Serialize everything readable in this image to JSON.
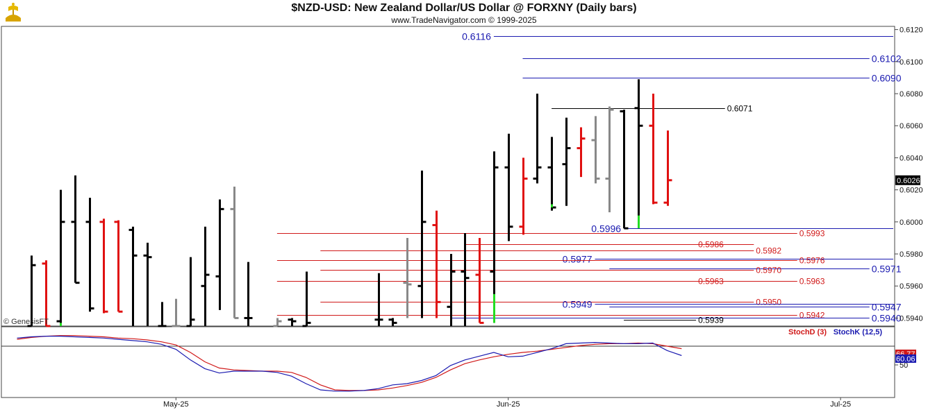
{
  "header": {
    "title": "$NZD-USD:  New Zealand Dollar/US Dollar @ FORXNY  (Daily bars)",
    "subtitle": "www.TradeNavigator.com © 1999-2025"
  },
  "logo": {
    "icon": "trade-navigator-logo-icon",
    "color": "#d8a400"
  },
  "watermark": "© GenesisFT",
  "colors": {
    "up": "#000000",
    "down": "#e01010",
    "neutral": "#888888",
    "extreme": "#22dd22",
    "blue_line": "#1a1ab0",
    "red_line": "#d01818",
    "stochD": "#d01818",
    "stochK": "#1a1ab0"
  },
  "chart_data": [
    {
      "type": "ohlc",
      "name": "price",
      "yaxis": {
        "range": [
          0.5935,
          0.6122
        ],
        "ticks": [
          "0.6120",
          "0.6100",
          "0.6080",
          "0.6060",
          "0.6040",
          "0.6020",
          "0.6000",
          "0.5980",
          "0.5960",
          "0.5940"
        ]
      },
      "last_price": "0.6026",
      "xaxis": {
        "labels": [
          {
            "text": "May-25",
            "index": 11
          },
          {
            "text": "Jun-25",
            "index": 34
          },
          {
            "text": "Jul-25",
            "index": 57
          }
        ],
        "count": 66
      },
      "bars": [
        {
          "i": 1,
          "o": 0.5935,
          "h": 0.5979,
          "l": 0.5935,
          "c": 0.5973,
          "col": "up"
        },
        {
          "i": 2,
          "o": 0.5974,
          "h": 0.5976,
          "l": 0.5935,
          "c": 0.5935,
          "col": "down"
        },
        {
          "i": 3,
          "o": 0.5938,
          "h": 0.602,
          "l": 0.5935,
          "c": 0.6,
          "col": "up"
        },
        {
          "i": 4,
          "o": 0.6,
          "h": 0.6029,
          "l": 0.5962,
          "c": 0.5962,
          "col": "up"
        },
        {
          "i": 5,
          "o": 0.6,
          "h": 0.6015,
          "l": 0.5944,
          "c": 0.5946,
          "col": "up"
        },
        {
          "i": 6,
          "o": 0.6,
          "h": 0.6002,
          "l": 0.5943,
          "c": 0.5944,
          "col": "down"
        },
        {
          "i": 7,
          "o": 0.6,
          "h": 0.6001,
          "l": 0.5944,
          "c": 0.5944,
          "col": "down"
        },
        {
          "i": 8,
          "o": 0.5995,
          "h": 0.5997,
          "l": 0.5935,
          "c": 0.5979,
          "col": "up"
        },
        {
          "i": 9,
          "o": 0.5979,
          "h": 0.5987,
          "l": 0.5935,
          "c": 0.5978,
          "col": "up"
        },
        {
          "i": 10,
          "o": 0.5935,
          "h": 0.595,
          "l": 0.5935,
          "c": 0.5935,
          "col": "up"
        },
        {
          "i": 11,
          "o": 0.5935,
          "h": 0.5952,
          "l": 0.5935,
          "c": 0.5935,
          "col": "neutral"
        },
        {
          "i": 12,
          "o": 0.5935,
          "h": 0.5978,
          "l": 0.5935,
          "c": 0.5939,
          "col": "up"
        },
        {
          "i": 13,
          "o": 0.596,
          "h": 0.5997,
          "l": 0.5935,
          "c": 0.5967,
          "col": "up"
        },
        {
          "i": 14,
          "o": 0.5966,
          "h": 0.6014,
          "l": 0.5945,
          "c": 0.6008,
          "col": "up"
        },
        {
          "i": 15,
          "o": 0.6008,
          "h": 0.6022,
          "l": 0.594,
          "c": 0.594,
          "col": "neutral"
        },
        {
          "i": 16,
          "o": 0.594,
          "h": 0.5975,
          "l": 0.5935,
          "c": 0.594,
          "col": "up"
        },
        {
          "i": 18,
          "o": 0.5935,
          "h": 0.594,
          "l": 0.5935,
          "c": 0.5938,
          "col": "neutral"
        },
        {
          "i": 19,
          "o": 0.5939,
          "h": 0.594,
          "l": 0.5935,
          "c": 0.5938,
          "col": "up"
        },
        {
          "i": 20,
          "o": 0.5935,
          "h": 0.5969,
          "l": 0.5935,
          "c": 0.5937,
          "col": "up"
        },
        {
          "i": 25,
          "o": 0.5939,
          "h": 0.5968,
          "l": 0.5935,
          "c": 0.5939,
          "col": "up"
        },
        {
          "i": 26,
          "o": 0.5939,
          "h": 0.594,
          "l": 0.5935,
          "c": 0.5937,
          "col": "up"
        },
        {
          "i": 27,
          "o": 0.5962,
          "h": 0.599,
          "l": 0.594,
          "c": 0.5961,
          "col": "neutral"
        },
        {
          "i": 28,
          "o": 0.596,
          "h": 0.6032,
          "l": 0.594,
          "c": 0.6,
          "col": "up"
        },
        {
          "i": 29,
          "o": 0.5998,
          "h": 0.6007,
          "l": 0.594,
          "c": 0.595,
          "col": "down"
        },
        {
          "i": 30,
          "o": 0.5947,
          "h": 0.598,
          "l": 0.5935,
          "c": 0.5969,
          "col": "up"
        },
        {
          "i": 31,
          "o": 0.5969,
          "h": 0.5993,
          "l": 0.5935,
          "c": 0.5965,
          "col": "up"
        },
        {
          "i": 32,
          "o": 0.5967,
          "h": 0.599,
          "l": 0.5937,
          "c": 0.5937,
          "col": "down"
        },
        {
          "i": 33,
          "o": 0.5969,
          "h": 0.6044,
          "l": 0.5937,
          "c": 0.6034,
          "col": "up"
        },
        {
          "i": 34,
          "o": 0.6034,
          "h": 0.6055,
          "l": 0.5988,
          "c": 0.5997,
          "col": "up"
        },
        {
          "i": 35,
          "o": 0.5997,
          "h": 0.604,
          "l": 0.5992,
          "c": 0.6027,
          "col": "down"
        },
        {
          "i": 36,
          "o": 0.6027,
          "h": 0.608,
          "l": 0.6024,
          "c": 0.6034,
          "col": "up"
        },
        {
          "i": 37,
          "o": 0.6034,
          "h": 0.6053,
          "l": 0.6007,
          "c": 0.6009,
          "col": "up"
        },
        {
          "i": 38,
          "o": 0.6036,
          "h": 0.6065,
          "l": 0.601,
          "c": 0.6046,
          "col": "up"
        },
        {
          "i": 39,
          "o": 0.6046,
          "h": 0.6059,
          "l": 0.6028,
          "c": 0.6052,
          "col": "down"
        },
        {
          "i": 40,
          "o": 0.6051,
          "h": 0.6066,
          "l": 0.6024,
          "c": 0.6027,
          "col": "neutral"
        },
        {
          "i": 41,
          "o": 0.6027,
          "h": 0.6072,
          "l": 0.6006,
          "c": 0.607,
          "col": "neutral"
        },
        {
          "i": 42,
          "o": 0.6069,
          "h": 0.607,
          "l": 0.5996,
          "c": 0.5996,
          "col": "up"
        },
        {
          "i": 43,
          "o": 0.6071,
          "h": 0.6089,
          "l": 0.5996,
          "c": 0.606,
          "col": "up"
        },
        {
          "i": 44,
          "o": 0.606,
          "h": 0.608,
          "l": 0.6011,
          "c": 0.6012,
          "col": "down"
        },
        {
          "i": 45,
          "o": 0.6012,
          "h": 0.6057,
          "l": 0.601,
          "c": 0.6026,
          "col": "down"
        }
      ],
      "extreme_ticks": [
        {
          "i": 3,
          "from": 0.5935,
          "to": 0.5937
        },
        {
          "i": 33,
          "from": 0.5937,
          "to": 0.5955
        },
        {
          "i": 37,
          "from": 0.6009,
          "to": 0.6011
        },
        {
          "i": 43,
          "from": 0.5996,
          "to": 0.6004
        }
      ],
      "levels": [
        {
          "value": 0.6116,
          "label": "0.6116",
          "color": "blue",
          "from": 33,
          "to": 65,
          "label_side": "left",
          "label_at": 33
        },
        {
          "value": 0.6102,
          "label": "0.6102",
          "color": "blue",
          "from": 35,
          "to": 59,
          "label_side": "right",
          "label_at": 59
        },
        {
          "value": 0.609,
          "label": "0.6090",
          "color": "blue",
          "from": 35,
          "to": 59,
          "label_side": "right",
          "label_at": 59
        },
        {
          "value": 0.6071,
          "label": "0.6071",
          "color": "black",
          "from": 37,
          "to": 49,
          "label_side": "right",
          "label_at": 49
        },
        {
          "value": 0.5996,
          "label": "0.5996",
          "color": "blue",
          "from": 42,
          "to": 65,
          "label_side": "left",
          "label_at": 42
        },
        {
          "value": 0.5993,
          "label": "0.5993",
          "color": "red",
          "from": 18,
          "to": 54,
          "label_side": "right",
          "label_at": 54
        },
        {
          "value": 0.5986,
          "label": "0.5986",
          "color": "red",
          "from": 31,
          "to": 51,
          "label_side": "right",
          "label_at": 47
        },
        {
          "value": 0.5982,
          "label": "0.5982",
          "color": "red",
          "from": 21,
          "to": 51,
          "label_side": "right",
          "label_at": 51
        },
        {
          "value": 0.5977,
          "label": "0.5977",
          "color": "blue",
          "from": 40,
          "to": 65,
          "label_side": "left",
          "label_at": 40
        },
        {
          "value": 0.5976,
          "label": "0.5976",
          "color": "red",
          "from": 18,
          "to": 54,
          "label_side": "right",
          "label_at": 54
        },
        {
          "value": 0.5971,
          "label": "0.5971",
          "color": "blue",
          "from": 41,
          "to": 59,
          "label_side": "right",
          "label_at": 59
        },
        {
          "value": 0.597,
          "label": "0.5970",
          "color": "red",
          "from": 21,
          "to": 51,
          "label_side": "right",
          "label_at": 51
        },
        {
          "value": 0.5963,
          "label": "0.5963",
          "color": "red",
          "from": 18,
          "to": 54,
          "label_side": "right",
          "label_at": 47
        },
        {
          "value": 0.5963,
          "label": "0.5963",
          "color": "red",
          "from": 18,
          "to": 54,
          "label_side": "right",
          "label_at": 54
        },
        {
          "value": 0.595,
          "label": "0.5950",
          "color": "red",
          "from": 21,
          "to": 51,
          "label_side": "right",
          "label_at": 51
        },
        {
          "value": 0.5949,
          "label": "0.5949",
          "color": "blue",
          "from": 40,
          "to": 65,
          "label_side": "left",
          "label_at": 40
        },
        {
          "value": 0.5947,
          "label": "0.5947",
          "color": "blue",
          "from": 41,
          "to": 59,
          "label_side": "right",
          "label_at": 59
        },
        {
          "value": 0.5942,
          "label": "0.5942",
          "color": "red",
          "from": 18,
          "to": 54,
          "label_side": "right",
          "label_at": 54
        },
        {
          "value": 0.594,
          "label": "0.5940",
          "color": "blue",
          "from": 30,
          "to": 59,
          "label_side": "right",
          "label_at": 59
        },
        {
          "value": 0.5939,
          "label": "0.5939",
          "color": "black",
          "from": 42,
          "to": 47,
          "label_side": "right",
          "label_at": 47
        }
      ]
    },
    {
      "type": "line",
      "name": "stochastics",
      "yaxis": {
        "range": [
          0,
          100
        ],
        "ticks": [
          "50"
        ]
      },
      "reference_line": 80,
      "last_values": {
        "stochD": "66.77",
        "stochK": "60.06"
      },
      "series": [
        {
          "name": "StochD (3)",
          "key": "stochD",
          "values": [
            91,
            94,
            96,
            97,
            97,
            96,
            95,
            93,
            92,
            90,
            87,
            82,
            70,
            55,
            45,
            42,
            41,
            40,
            40,
            38,
            30,
            18,
            10,
            9,
            9,
            10,
            13,
            17,
            22,
            30,
            42,
            52,
            58,
            63,
            67,
            70,
            72,
            75,
            78,
            81,
            83,
            84,
            84,
            85,
            84,
            80,
            76
          ]
        },
        {
          "name": "StochK (12,5)",
          "key": "stochK",
          "values": [
            93,
            95,
            96,
            96,
            95,
            94,
            93,
            91,
            89,
            87,
            83,
            75,
            58,
            44,
            37,
            40,
            40,
            40,
            38,
            32,
            20,
            10,
            8,
            8,
            9,
            12,
            18,
            20,
            25,
            33,
            49,
            58,
            64,
            70,
            63,
            64,
            70,
            76,
            84,
            85,
            86,
            85,
            84,
            84,
            85,
            73,
            65
          ]
        }
      ]
    }
  ]
}
